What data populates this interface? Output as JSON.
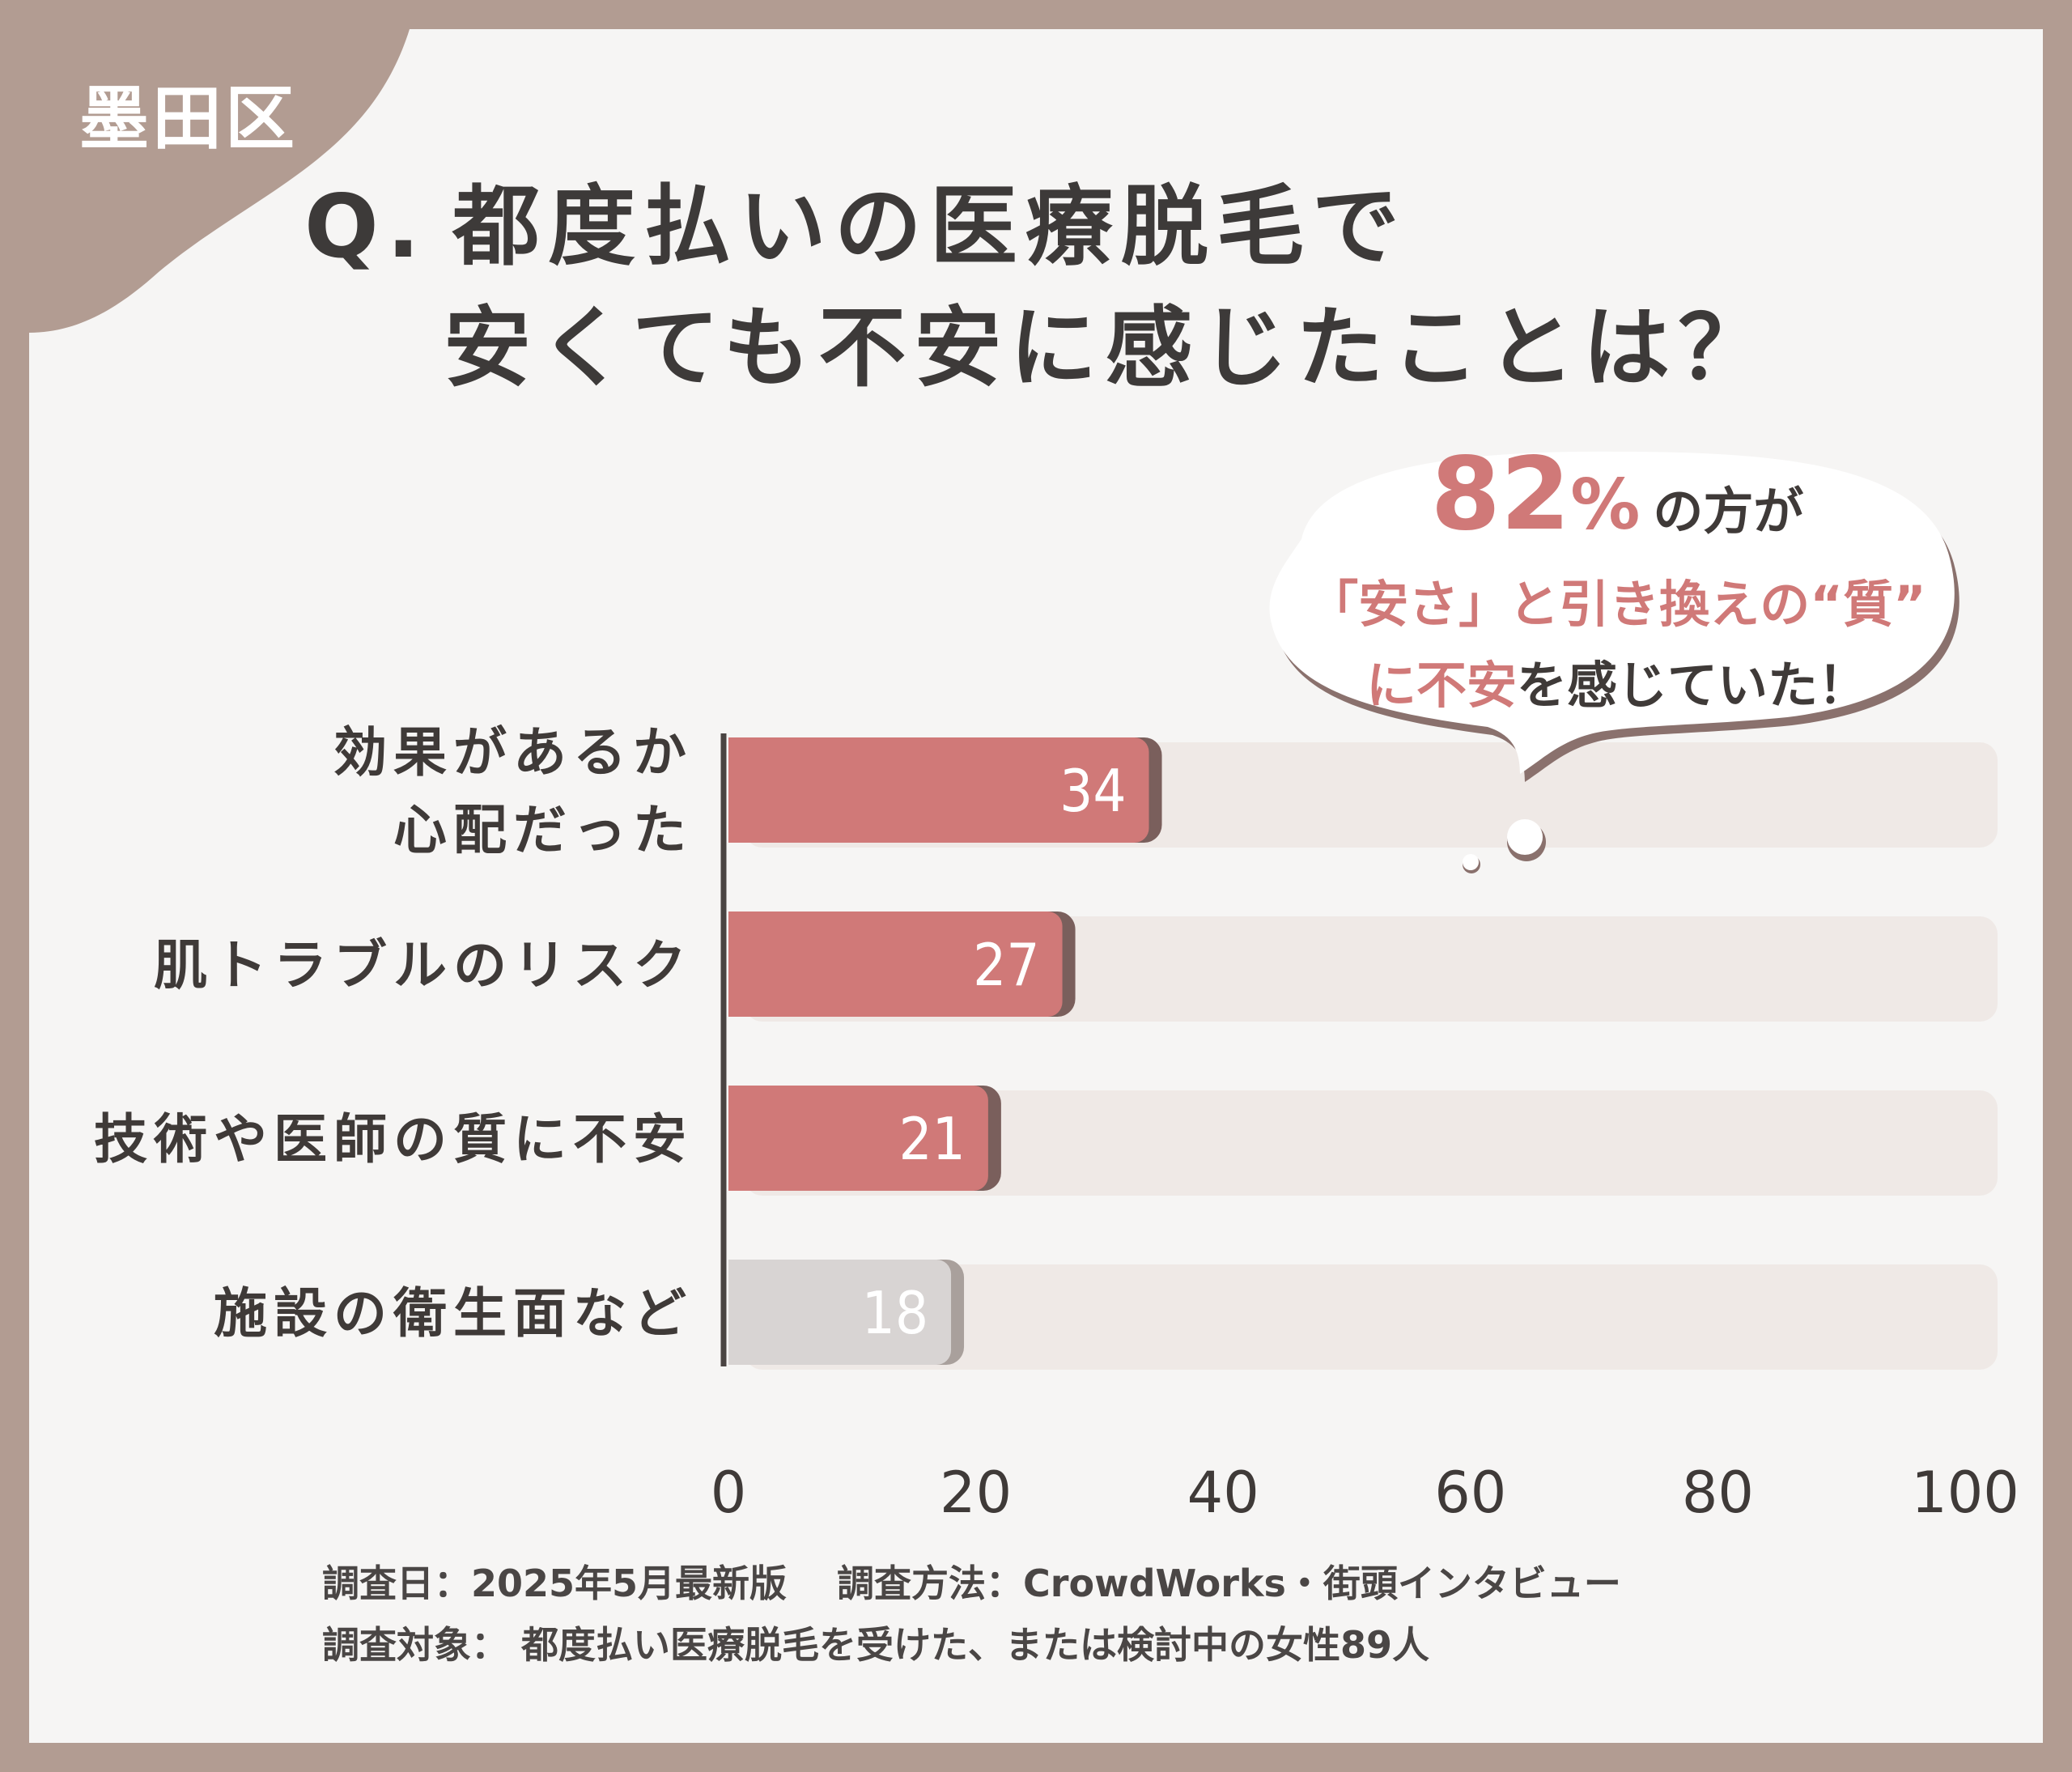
{
  "badge": {
    "region": "墨田区"
  },
  "question": {
    "prefix": "Q.",
    "line1": "都度払いの医療脱毛で",
    "line2": "安くても不安に感じたことは？"
  },
  "callout": {
    "number": "82",
    "percent_sign": "%",
    "line1_suffix": "の方が",
    "line2": "「安さ」と引き換えの“質”",
    "line3_accent": "に不安",
    "line3_rest": "を感じていた！"
  },
  "chart_data": {
    "type": "bar",
    "orientation": "horizontal",
    "categories": [
      [
        "効果があるか",
        "心配だった"
      ],
      [
        "肌トラブルのリスク"
      ],
      [
        "技術や医師の質に不安"
      ],
      [
        "施設の衛生面など"
      ]
    ],
    "values": [
      34,
      27,
      21,
      18
    ],
    "data_labels": [
      "34",
      "27",
      "21",
      "18"
    ],
    "xlim": [
      0,
      100
    ],
    "xticks": [
      "0",
      "20",
      "40",
      "60",
      "80",
      "100"
    ],
    "grid": false,
    "colors": {
      "highlight": "#d07978",
      "highlight_shadow": "#7a5f5c",
      "neutral": "#d8d4d3",
      "neutral_shadow": "#a9a09c",
      "track": "#efe9e6",
      "axis": "#4a4442"
    },
    "bar_highlight": [
      true,
      true,
      true,
      false
    ]
  },
  "footnote": {
    "line1": "調査日：2025年5月最新版　 調査方法：CrowdWorks・街頭インタビュー",
    "line2": "調査対象：  都度払い医療脱毛を受けた、または検討中の女性89人"
  }
}
